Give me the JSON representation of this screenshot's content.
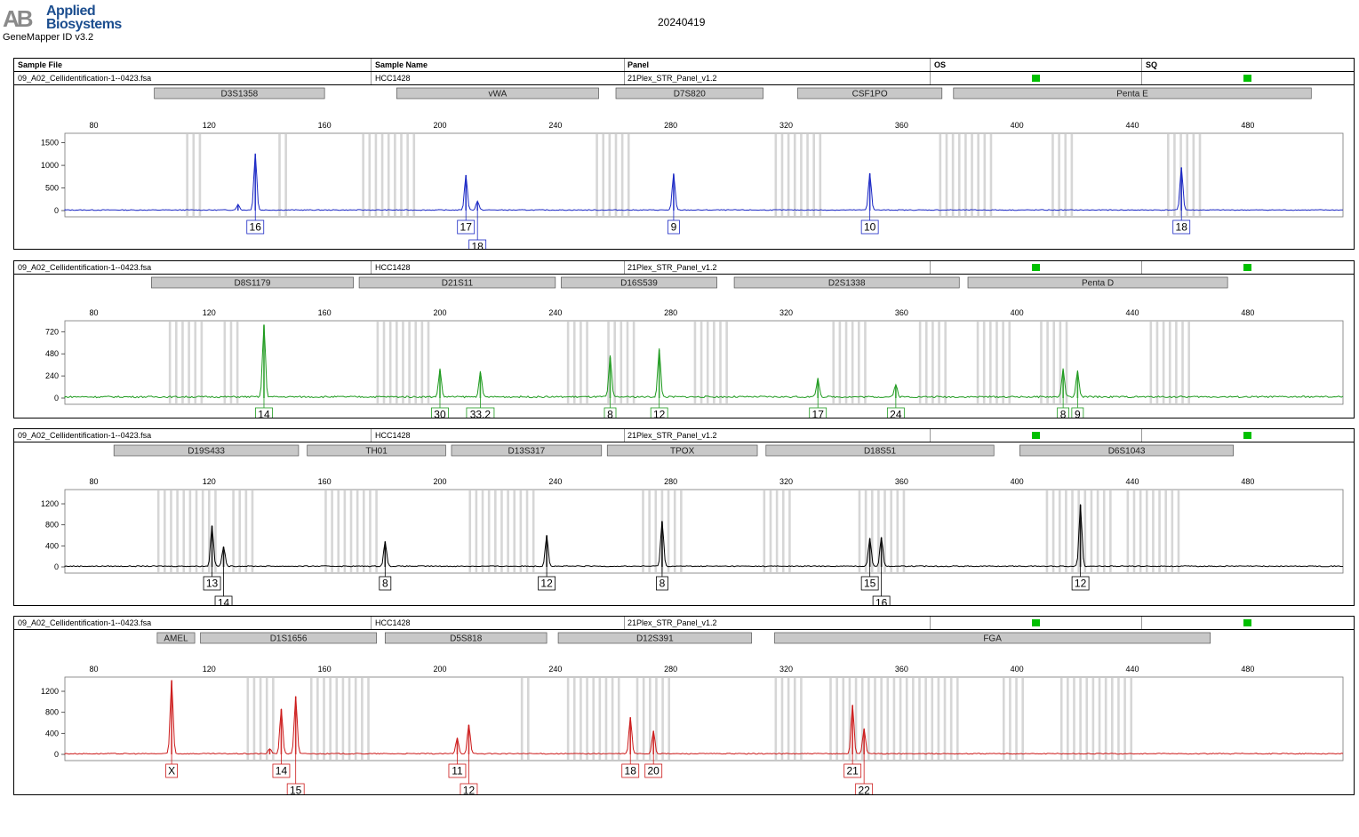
{
  "brand": {
    "mark": "AB",
    "line1": "Applied",
    "line2": "Biosystems"
  },
  "app": {
    "name": "GeneMapper ID v3.2"
  },
  "run_date": "20240419",
  "table_header": {
    "sample_file": "Sample File",
    "sample_name": "Sample Name",
    "panel": "Panel",
    "os": "OS",
    "sq": "SQ"
  },
  "colors": {
    "blue": "#1a27c4",
    "green": "#1e9a1e",
    "black": "#000000",
    "red": "#cc1a1a",
    "quality_ok": "#00c000",
    "bin": "#d6d6d6",
    "marker_bg": "#c8c8c8"
  },
  "panels": [
    {
      "sample_file": "09_A02_Cellidentification-1--0423.fsa",
      "sample_name": "HCC1428",
      "panel": "21Plex_STR_Panel_v1.2",
      "dye": "blue",
      "markers": [
        {
          "name": "D3S1358",
          "range": [
            101,
            160
          ]
        },
        {
          "name": "vWA",
          "range": [
            185,
            255
          ]
        },
        {
          "name": "D7S820",
          "range": [
            261,
            312
          ]
        },
        {
          "name": "CSF1PO",
          "range": [
            324,
            374
          ]
        },
        {
          "name": "Penta E",
          "range": [
            378,
            502
          ]
        }
      ],
      "bins": [
        [
          112,
          118
        ],
        [
          144,
          147
        ],
        [
          173,
          192
        ],
        [
          254,
          265
        ],
        [
          316,
          332
        ],
        [
          373,
          392
        ],
        [
          412,
          420
        ],
        [
          452,
          465
        ]
      ],
      "y_ticks": [
        0,
        500,
        1000,
        1500
      ],
      "y_max": 1650,
      "peaks": [
        {
          "x": 130,
          "h": 120,
          "label": null
        },
        {
          "x": 136,
          "h": 1250,
          "label": "16",
          "row": 0
        },
        {
          "x": 209,
          "h": 780,
          "label": "17",
          "row": 0
        },
        {
          "x": 213,
          "h": 200,
          "label": "18",
          "row": 1
        },
        {
          "x": 281,
          "h": 800,
          "label": "9",
          "row": 0
        },
        {
          "x": 349,
          "h": 820,
          "label": "10",
          "row": 0
        },
        {
          "x": 457,
          "h": 950,
          "label": "18",
          "row": 0
        }
      ]
    },
    {
      "sample_file": "09_A02_Cellidentification-1--0423.fsa",
      "sample_name": "HCC1428",
      "panel": "21Plex_STR_Panel_v1.2",
      "dye": "green",
      "markers": [
        {
          "name": "D8S1179",
          "range": [
            100,
            170
          ]
        },
        {
          "name": "D21S11",
          "range": [
            172,
            240
          ]
        },
        {
          "name": "D16S539",
          "range": [
            242,
            296
          ]
        },
        {
          "name": "D2S1338",
          "range": [
            302,
            380
          ]
        },
        {
          "name": "Penta D",
          "range": [
            383,
            473
          ]
        }
      ],
      "bins": [
        [
          106,
          118
        ],
        [
          125,
          130
        ],
        [
          178,
          196
        ],
        [
          244,
          252
        ],
        [
          258,
          268
        ],
        [
          288,
          300
        ],
        [
          336,
          348
        ],
        [
          366,
          376
        ],
        [
          386,
          398
        ],
        [
          408,
          418
        ],
        [
          446,
          460
        ]
      ],
      "y_ticks": [
        0,
        240,
        480,
        720
      ],
      "y_max": 810,
      "peaks": [
        {
          "x": 139,
          "h": 790,
          "label": "14",
          "row": 0
        },
        {
          "x": 200,
          "h": 300,
          "label": "30",
          "row": 0
        },
        {
          "x": 214,
          "h": 270,
          "label": "33.2",
          "row": 0
        },
        {
          "x": 259,
          "h": 440,
          "label": "8",
          "row": 0
        },
        {
          "x": 276,
          "h": 520,
          "label": "12",
          "row": 0
        },
        {
          "x": 331,
          "h": 200,
          "label": "17",
          "row": 0
        },
        {
          "x": 358,
          "h": 140,
          "label": "24",
          "row": 0
        },
        {
          "x": 416,
          "h": 300,
          "label": "8",
          "row": 0
        },
        {
          "x": 421,
          "h": 280,
          "label": "9",
          "row": 0
        }
      ]
    },
    {
      "sample_file": "09_A02_Cellidentification-1--0423.fsa",
      "sample_name": "HCC1428",
      "panel": "21Plex_STR_Panel_v1.2",
      "dye": "black",
      "markers": [
        {
          "name": "D19S433",
          "range": [
            87,
            151
          ]
        },
        {
          "name": "TH01",
          "range": [
            154,
            202
          ]
        },
        {
          "name": "D13S317",
          "range": [
            204,
            256
          ]
        },
        {
          "name": "TPOX",
          "range": [
            258,
            310
          ]
        },
        {
          "name": "D18S51",
          "range": [
            313,
            392
          ]
        },
        {
          "name": "D6S1043",
          "range": [
            401,
            475
          ]
        }
      ],
      "bins": [
        [
          102,
          124
        ],
        [
          128,
          136
        ],
        [
          160,
          178
        ],
        [
          210,
          234
        ],
        [
          270,
          284
        ],
        [
          312,
          322
        ],
        [
          345,
          362
        ],
        [
          410,
          432
        ],
        [
          438,
          456
        ]
      ],
      "y_ticks": [
        0,
        400,
        800,
        1200
      ],
      "y_max": 1420,
      "peaks": [
        {
          "x": 121,
          "h": 780,
          "label": "13",
          "row": 0
        },
        {
          "x": 125,
          "h": 380,
          "label": "14",
          "row": 1
        },
        {
          "x": 181,
          "h": 480,
          "label": "8",
          "row": 0
        },
        {
          "x": 237,
          "h": 600,
          "label": "12",
          "row": 0
        },
        {
          "x": 277,
          "h": 860,
          "label": "8",
          "row": 0
        },
        {
          "x": 349,
          "h": 540,
          "label": "15",
          "row": 0
        },
        {
          "x": 353,
          "h": 560,
          "label": "16",
          "row": 1
        },
        {
          "x": 422,
          "h": 1180,
          "label": "12",
          "row": 0
        }
      ]
    },
    {
      "sample_file": "09_A02_Cellidentification-1--0423.fsa",
      "sample_name": "HCC1428",
      "panel": "21Plex_STR_Panel_v1.2",
      "dye": "red",
      "markers": [
        {
          "name": "AMEL",
          "range": [
            102,
            115
          ]
        },
        {
          "name": "D1S1656",
          "range": [
            117,
            178
          ]
        },
        {
          "name": "D5S818",
          "range": [
            181,
            237
          ]
        },
        {
          "name": "D12S391",
          "range": [
            241,
            308
          ]
        },
        {
          "name": "FGA",
          "range": [
            316,
            467
          ]
        }
      ],
      "bins": [
        [
          133,
          142
        ],
        [
          155,
          175
        ],
        [
          228,
          232
        ],
        [
          244,
          262
        ],
        [
          268,
          280
        ],
        [
          316,
          326
        ],
        [
          335,
          380
        ],
        [
          395,
          402
        ],
        [
          415,
          440
        ]
      ],
      "y_ticks": [
        0,
        400,
        800,
        1200
      ],
      "y_max": 1420,
      "peaks": [
        {
          "x": 107,
          "h": 1400,
          "label": "X",
          "row": 0
        },
        {
          "x": 141,
          "h": 100,
          "label": null
        },
        {
          "x": 145,
          "h": 860,
          "label": "14",
          "row": 0
        },
        {
          "x": 150,
          "h": 1100,
          "label": "15",
          "row": 1
        },
        {
          "x": 206,
          "h": 300,
          "label": "11",
          "row": 0
        },
        {
          "x": 210,
          "h": 560,
          "label": "12",
          "row": 1
        },
        {
          "x": 266,
          "h": 700,
          "label": "18",
          "row": 0
        },
        {
          "x": 274,
          "h": 440,
          "label": "20",
          "row": 0
        },
        {
          "x": 343,
          "h": 930,
          "label": "21",
          "row": 0
        },
        {
          "x": 347,
          "h": 480,
          "label": "22",
          "row": 1
        }
      ]
    }
  ],
  "chart_data": {
    "type": "line",
    "x": [
      80,
      120,
      160,
      200,
      240,
      280,
      320,
      360,
      400,
      440,
      480
    ],
    "ylim_per_panel": [
      [
        0,
        1650
      ],
      [
        0,
        810
      ],
      [
        0,
        1420
      ],
      [
        0,
        1420
      ]
    ],
    "series": [
      {
        "values": [
          [
            130,
            120
          ],
          [
            136,
            1250
          ],
          [
            209,
            780
          ],
          [
            213,
            200
          ],
          [
            281,
            800
          ],
          [
            349,
            820
          ],
          [
            457,
            950
          ]
        ]
      },
      {
        "values": [
          [
            139,
            790
          ],
          [
            200,
            300
          ],
          [
            214,
            270
          ],
          [
            259,
            440
          ],
          [
            276,
            520
          ],
          [
            331,
            200
          ],
          [
            358,
            140
          ],
          [
            416,
            300
          ],
          [
            421,
            280
          ]
        ]
      },
      {
        "values": [
          [
            121,
            780
          ],
          [
            125,
            380
          ],
          [
            181,
            480
          ],
          [
            237,
            600
          ],
          [
            277,
            860
          ],
          [
            349,
            540
          ],
          [
            353,
            560
          ],
          [
            422,
            1180
          ]
        ]
      },
      {
        "values": [
          [
            107,
            1400
          ],
          [
            141,
            100
          ],
          [
            145,
            860
          ],
          [
            150,
            1100
          ],
          [
            206,
            300
          ],
          [
            210,
            560
          ],
          [
            266,
            700
          ],
          [
            274,
            440
          ],
          [
            343,
            930
          ],
          [
            347,
            480
          ]
        ]
      }
    ]
  }
}
